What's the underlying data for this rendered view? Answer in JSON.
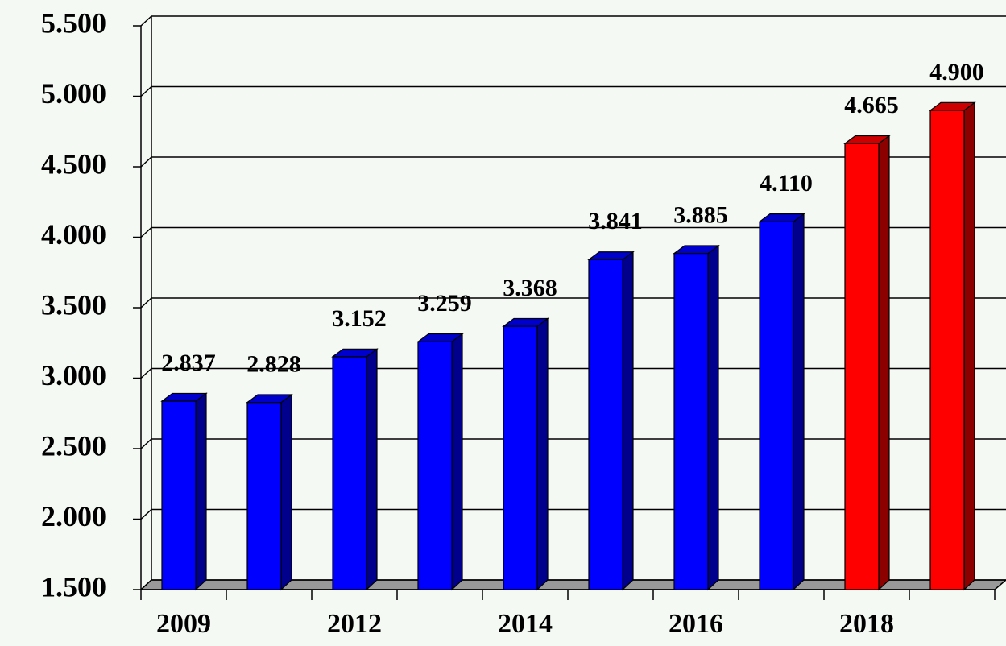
{
  "chart_data": {
    "type": "bar",
    "categories": [
      "2009",
      null,
      "2012",
      null,
      "2014",
      null,
      "2016",
      null,
      "2018",
      null
    ],
    "values": [
      2837,
      2828,
      3152,
      3259,
      3368,
      3841,
      3885,
      4110,
      4665,
      4900
    ],
    "value_labels": [
      "2.837",
      "2.828",
      "3.152",
      "3.259",
      "3.368",
      "3.841",
      "3.885",
      "4.110",
      "4.665",
      "4.900"
    ],
    "colors": [
      "#0000ff",
      "#0000ff",
      "#0000ff",
      "#0000ff",
      "#0000ff",
      "#0000ff",
      "#0000ff",
      "#0000ff",
      "#ff0000",
      "#ff0000"
    ],
    "ylim": [
      1500,
      5500
    ],
    "yticks": [
      {
        "value": 1500,
        "label": "1.500"
      },
      {
        "value": 2000,
        "label": "2.000"
      },
      {
        "value": 2500,
        "label": "2.500"
      },
      {
        "value": 3000,
        "label": "3.000"
      },
      {
        "value": 3500,
        "label": "3.500"
      },
      {
        "value": 4000,
        "label": "4.000"
      },
      {
        "value": 4500,
        "label": "4.500"
      },
      {
        "value": 5000,
        "label": "5.000"
      },
      {
        "value": 5500,
        "label": "5.500"
      }
    ],
    "grid": true
  }
}
